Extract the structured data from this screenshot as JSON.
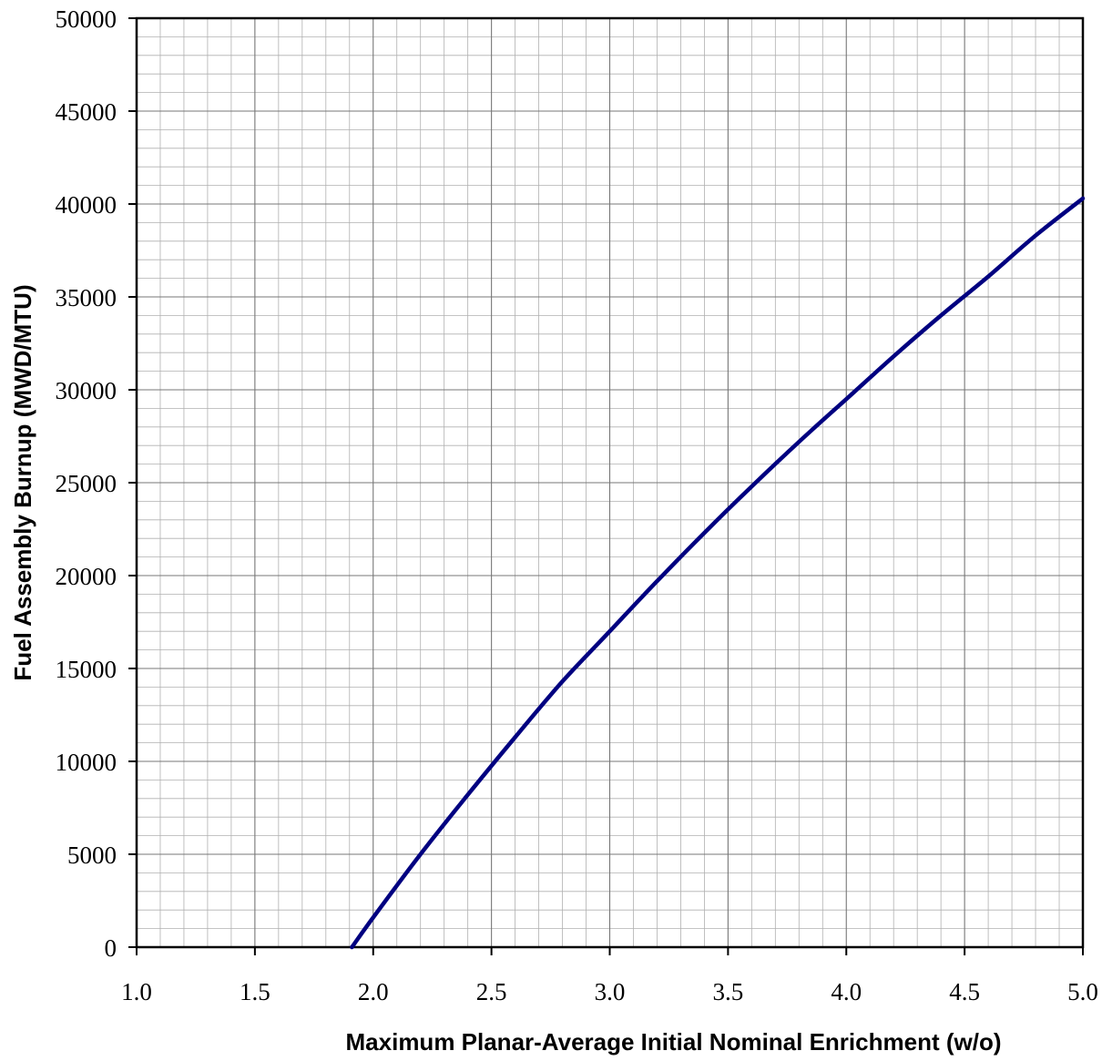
{
  "chart_data": {
    "type": "line",
    "xlabel": "Maximum Planar-Average Initial Nominal Enrichment (w/o)",
    "ylabel": "Fuel Assembly Burnup (MWD/MTU)",
    "xlim": [
      1.0,
      5.0
    ],
    "ylim": [
      0,
      50000
    ],
    "x_ticks": [
      "1.0",
      "1.5",
      "2.0",
      "2.5",
      "3.0",
      "3.5",
      "4.0",
      "4.5",
      "5.0"
    ],
    "y_ticks": [
      "0",
      "5000",
      "10000",
      "15000",
      "20000",
      "25000",
      "30000",
      "35000",
      "40000",
      "45000",
      "50000"
    ],
    "grid": true,
    "line_color": "#000080",
    "series": [
      {
        "x": [
          1.91,
          2.0,
          2.2,
          2.4,
          2.6,
          2.8,
          3.0,
          3.2,
          3.4,
          3.6,
          3.8,
          4.0,
          4.2,
          4.4,
          4.6,
          4.8,
          5.0
        ],
        "values": [
          0,
          1600,
          5000,
          8200,
          11300,
          14300,
          17000,
          19700,
          22300,
          24800,
          27200,
          29500,
          31800,
          34000,
          36100,
          38300,
          40300
        ]
      }
    ]
  }
}
